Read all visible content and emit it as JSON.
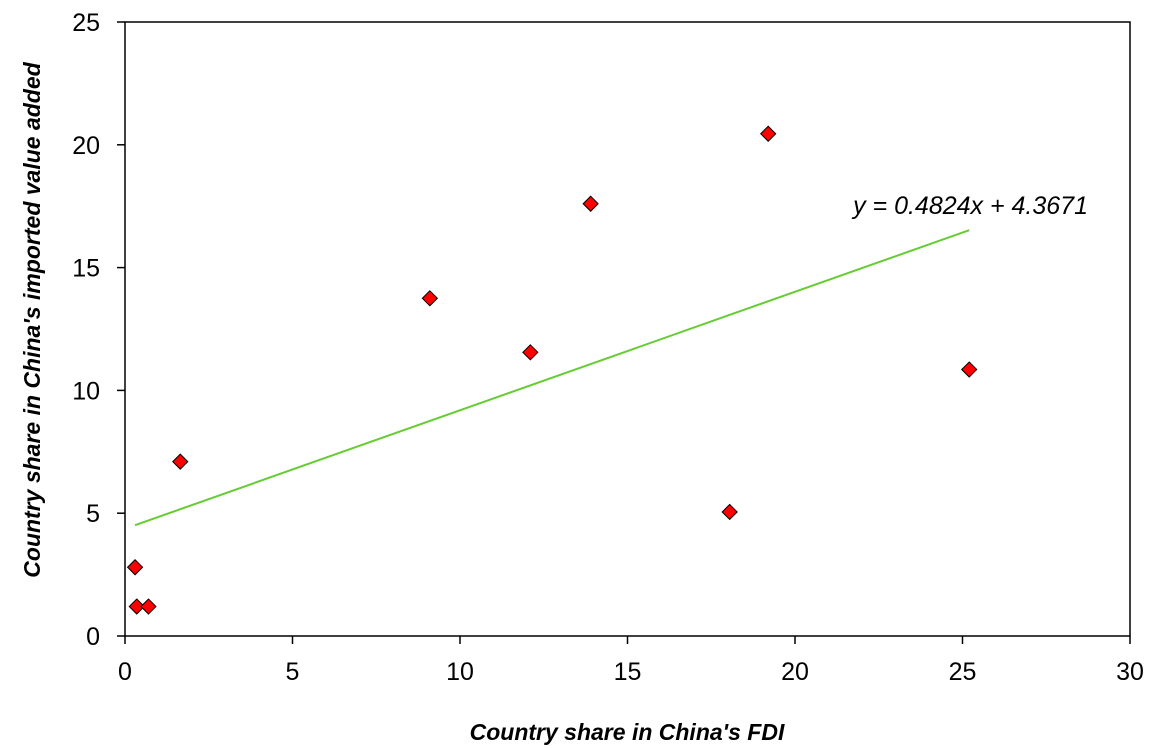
{
  "chart_data": {
    "type": "scatter",
    "xlabel": "Country share in China's FDI",
    "ylabel": "Country share in China's imported value added",
    "xlim": [
      0,
      30
    ],
    "ylim": [
      0,
      25
    ],
    "x_ticks": [
      "0",
      "5",
      "10",
      "15",
      "20",
      "25",
      "30"
    ],
    "y_ticks": [
      "0",
      "5",
      "10",
      "15",
      "20",
      "25"
    ],
    "grid": false,
    "series": [
      {
        "marker": "diamond",
        "color": "#ff0000",
        "points": [
          {
            "x": 0.3,
            "y": 2.8
          },
          {
            "x": 0.35,
            "y": 1.2
          },
          {
            "x": 0.7,
            "y": 1.2
          },
          {
            "x": 1.65,
            "y": 7.1
          },
          {
            "x": 9.1,
            "y": 13.75
          },
          {
            "x": 12.1,
            "y": 11.55
          },
          {
            "x": 13.9,
            "y": 17.6
          },
          {
            "x": 18.05,
            "y": 5.05
          },
          {
            "x": 19.2,
            "y": 20.45
          },
          {
            "x": 25.2,
            "y": 10.85
          }
        ]
      }
    ],
    "trendline": {
      "slope": 0.4824,
      "intercept": 4.3671,
      "x_range": [
        0.3,
        25.2
      ],
      "color": "#66cc33",
      "label": "y = 0.4824x + 4.3671"
    }
  }
}
